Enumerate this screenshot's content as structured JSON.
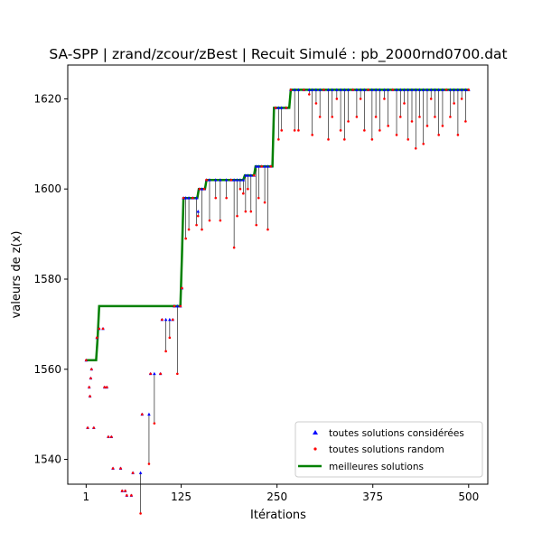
{
  "chart_data": {
    "type": "scatter",
    "title": "SA-SPP | zrand/zcour/zBest | Recuit Simulé : pb_2000rnd0700.dat",
    "xlabel": "Itérations",
    "ylabel": "valeurs de z(x)",
    "xlim": [
      -23,
      525
    ],
    "ylim": [
      1534.5,
      1627.5
    ],
    "xticks": [
      1,
      125,
      250,
      375,
      500
    ],
    "yticks": [
      1540,
      1560,
      1580,
      1600,
      1620
    ],
    "legend_position": "lower-right",
    "legend": [
      {
        "label": "toutes solutions considérées",
        "marker": "triangle",
        "color": "#0000ff"
      },
      {
        "label": "toutes solutions random",
        "marker": "dot",
        "color": "#ff0000"
      },
      {
        "label": "meilleures solutions",
        "marker": "line",
        "color": "#008000"
      }
    ],
    "best": [
      [
        1,
        1562
      ],
      [
        14,
        1562
      ],
      [
        16,
        1567
      ],
      [
        18,
        1574
      ],
      [
        124,
        1574
      ],
      [
        126,
        1585
      ],
      [
        128,
        1598
      ],
      [
        146,
        1598
      ],
      [
        148,
        1600
      ],
      [
        156,
        1600
      ],
      [
        158,
        1602
      ],
      [
        206,
        1602
      ],
      [
        208,
        1603
      ],
      [
        220,
        1603
      ],
      [
        222,
        1605
      ],
      [
        244,
        1605
      ],
      [
        246,
        1618
      ],
      [
        266,
        1618
      ],
      [
        268,
        1622
      ],
      [
        500,
        1622
      ]
    ],
    "current": [
      [
        1,
        1562,
        1562
      ],
      [
        3,
        1547,
        1547
      ],
      [
        5,
        1556,
        1556
      ],
      [
        6,
        1554,
        1554
      ],
      [
        7,
        1558,
        1558
      ],
      [
        8,
        1560,
        1560
      ],
      [
        11,
        1547,
        1547
      ],
      [
        15,
        1567,
        1567
      ],
      [
        18,
        1569,
        1569
      ],
      [
        23,
        1569,
        1569
      ],
      [
        25,
        1556,
        1556
      ],
      [
        28,
        1556,
        1556
      ],
      [
        30,
        1545,
        1545
      ],
      [
        34,
        1545,
        1545
      ],
      [
        36,
        1538,
        1538
      ],
      [
        46,
        1538,
        1538
      ],
      [
        48,
        1533,
        1533
      ],
      [
        52,
        1533,
        1533
      ],
      [
        54,
        1532,
        1532
      ],
      [
        60,
        1532,
        1532
      ],
      [
        62,
        1537,
        1537
      ],
      [
        72,
        1537,
        1528
      ],
      [
        74,
        1550,
        1550
      ],
      [
        83,
        1550,
        1539
      ],
      [
        85,
        1559,
        1559
      ],
      [
        90,
        1559,
        1548
      ],
      [
        98,
        1559,
        1559
      ],
      [
        100,
        1571,
        1571
      ],
      [
        105,
        1571,
        1564
      ],
      [
        110,
        1571,
        1567
      ],
      [
        114,
        1571,
        1571
      ],
      [
        116,
        1574,
        1574
      ],
      [
        120,
        1574,
        1559
      ],
      [
        124,
        1574,
        1574
      ],
      [
        126,
        1578,
        1578
      ],
      [
        128,
        1598,
        1598
      ],
      [
        131,
        1598,
        1589
      ],
      [
        135,
        1598,
        1591
      ],
      [
        140,
        1598,
        1598
      ],
      [
        145,
        1598,
        1592
      ],
      [
        147,
        1595,
        1594
      ],
      [
        149,
        1600,
        1600
      ],
      [
        152,
        1600,
        1591
      ],
      [
        155,
        1600,
        1600
      ],
      [
        158,
        1602,
        1602
      ],
      [
        162,
        1602,
        1593
      ],
      [
        170,
        1602,
        1598
      ],
      [
        176,
        1602,
        1593
      ],
      [
        184,
        1602,
        1598
      ],
      [
        190,
        1602,
        1602
      ],
      [
        194,
        1602,
        1587
      ],
      [
        198,
        1602,
        1594
      ],
      [
        202,
        1602,
        1600
      ],
      [
        206,
        1602,
        1599
      ],
      [
        209,
        1603,
        1595
      ],
      [
        212,
        1603,
        1600
      ],
      [
        216,
        1603,
        1595
      ],
      [
        220,
        1603,
        1603
      ],
      [
        223,
        1605,
        1592
      ],
      [
        226,
        1605,
        1598
      ],
      [
        230,
        1605,
        1605
      ],
      [
        234,
        1605,
        1597
      ],
      [
        238,
        1605,
        1591
      ],
      [
        242,
        1605,
        1605
      ],
      [
        248,
        1618,
        1618
      ],
      [
        252,
        1618,
        1611
      ],
      [
        256,
        1618,
        1613
      ],
      [
        262,
        1618,
        1618
      ],
      [
        268,
        1622,
        1622
      ],
      [
        273,
        1622,
        1613
      ],
      [
        278,
        1622,
        1613
      ],
      [
        285,
        1622,
        1622
      ],
      [
        292,
        1622,
        1621
      ],
      [
        296,
        1622,
        1612
      ],
      [
        301,
        1622,
        1619
      ],
      [
        306,
        1622,
        1616
      ],
      [
        311,
        1622,
        1622
      ],
      [
        317,
        1622,
        1611
      ],
      [
        322,
        1622,
        1616
      ],
      [
        328,
        1622,
        1620
      ],
      [
        333,
        1622,
        1613
      ],
      [
        338,
        1622,
        1611
      ],
      [
        343,
        1622,
        1615
      ],
      [
        349,
        1622,
        1622
      ],
      [
        354,
        1622,
        1616
      ],
      [
        359,
        1622,
        1620
      ],
      [
        364,
        1622,
        1613
      ],
      [
        369,
        1622,
        1622
      ],
      [
        374,
        1622,
        1611
      ],
      [
        379,
        1622,
        1616
      ],
      [
        384,
        1622,
        1613
      ],
      [
        390,
        1622,
        1620
      ],
      [
        395,
        1622,
        1614
      ],
      [
        401,
        1622,
        1622
      ],
      [
        406,
        1622,
        1612
      ],
      [
        411,
        1622,
        1616
      ],
      [
        416,
        1622,
        1619
      ],
      [
        421,
        1622,
        1611
      ],
      [
        426,
        1622,
        1615
      ],
      [
        431,
        1622,
        1609
      ],
      [
        436,
        1622,
        1616
      ],
      [
        441,
        1622,
        1610
      ],
      [
        446,
        1622,
        1614
      ],
      [
        451,
        1622,
        1620
      ],
      [
        456,
        1622,
        1616
      ],
      [
        461,
        1622,
        1612
      ],
      [
        466,
        1622,
        1614
      ],
      [
        471,
        1622,
        1622
      ],
      [
        476,
        1622,
        1616
      ],
      [
        481,
        1622,
        1619
      ],
      [
        486,
        1622,
        1612
      ],
      [
        491,
        1622,
        1620
      ],
      [
        496,
        1622,
        1615
      ],
      [
        500,
        1622,
        1622
      ]
    ]
  }
}
